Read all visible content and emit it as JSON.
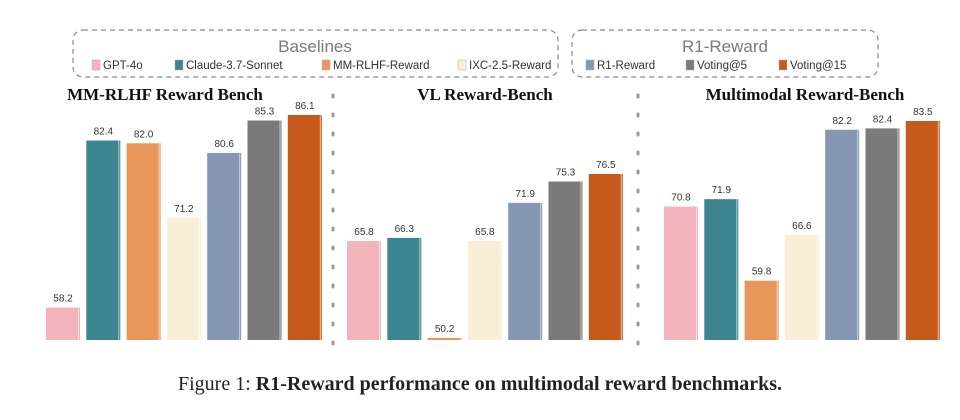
{
  "legend": {
    "baselines_title": "Baselines",
    "r1_title": "R1-Reward",
    "baselines": [
      {
        "name": "GPT-4o",
        "color": "#f4b4bc"
      },
      {
        "name": "Claude-3.7-Sonnet",
        "color": "#3d8590"
      },
      {
        "name": "MM-RLHF-Reward",
        "color": "#e8965a"
      },
      {
        "name": "IXC-2.5-Reward",
        "color": "#f9efd6"
      }
    ],
    "r1": [
      {
        "name": "R1-Reward",
        "color": "#8597b2"
      },
      {
        "name": "Voting@5",
        "color": "#7a7a7a"
      },
      {
        "name": "Voting@15",
        "color": "#c55a1c"
      }
    ]
  },
  "chart_data": [
    {
      "type": "bar",
      "title": "MM-RLHF Reward Bench",
      "categories": [
        "GPT-4o",
        "Claude-3.7-Sonnet",
        "MM-RLHF-Reward",
        "IXC-2.5-Reward",
        "R1-Reward",
        "Voting@5",
        "Voting@15"
      ],
      "values": [
        58.2,
        82.4,
        82.0,
        71.2,
        80.6,
        85.3,
        86.1
      ]
    },
    {
      "type": "bar",
      "title": "VL Reward-Bench",
      "categories": [
        "GPT-4o",
        "Claude-3.7-Sonnet",
        "MM-RLHF-Reward",
        "IXC-2.5-Reward",
        "R1-Reward",
        "Voting@5",
        "Voting@15"
      ],
      "values": [
        65.8,
        66.3,
        50.2,
        65.8,
        71.9,
        75.3,
        76.5
      ]
    },
    {
      "type": "bar",
      "title": "Multimodal  Reward-Bench",
      "categories": [
        "GPT-4o",
        "Claude-3.7-Sonnet",
        "MM-RLHF-Reward",
        "IXC-2.5-Reward",
        "R1-Reward",
        "Voting@5",
        "Voting@15"
      ],
      "values": [
        70.8,
        71.9,
        59.8,
        66.6,
        82.2,
        82.4,
        83.5
      ]
    }
  ],
  "caption": {
    "prefix": "Figure 1: ",
    "bold": "R1-Reward performance on multimodal reward benchmarks."
  }
}
